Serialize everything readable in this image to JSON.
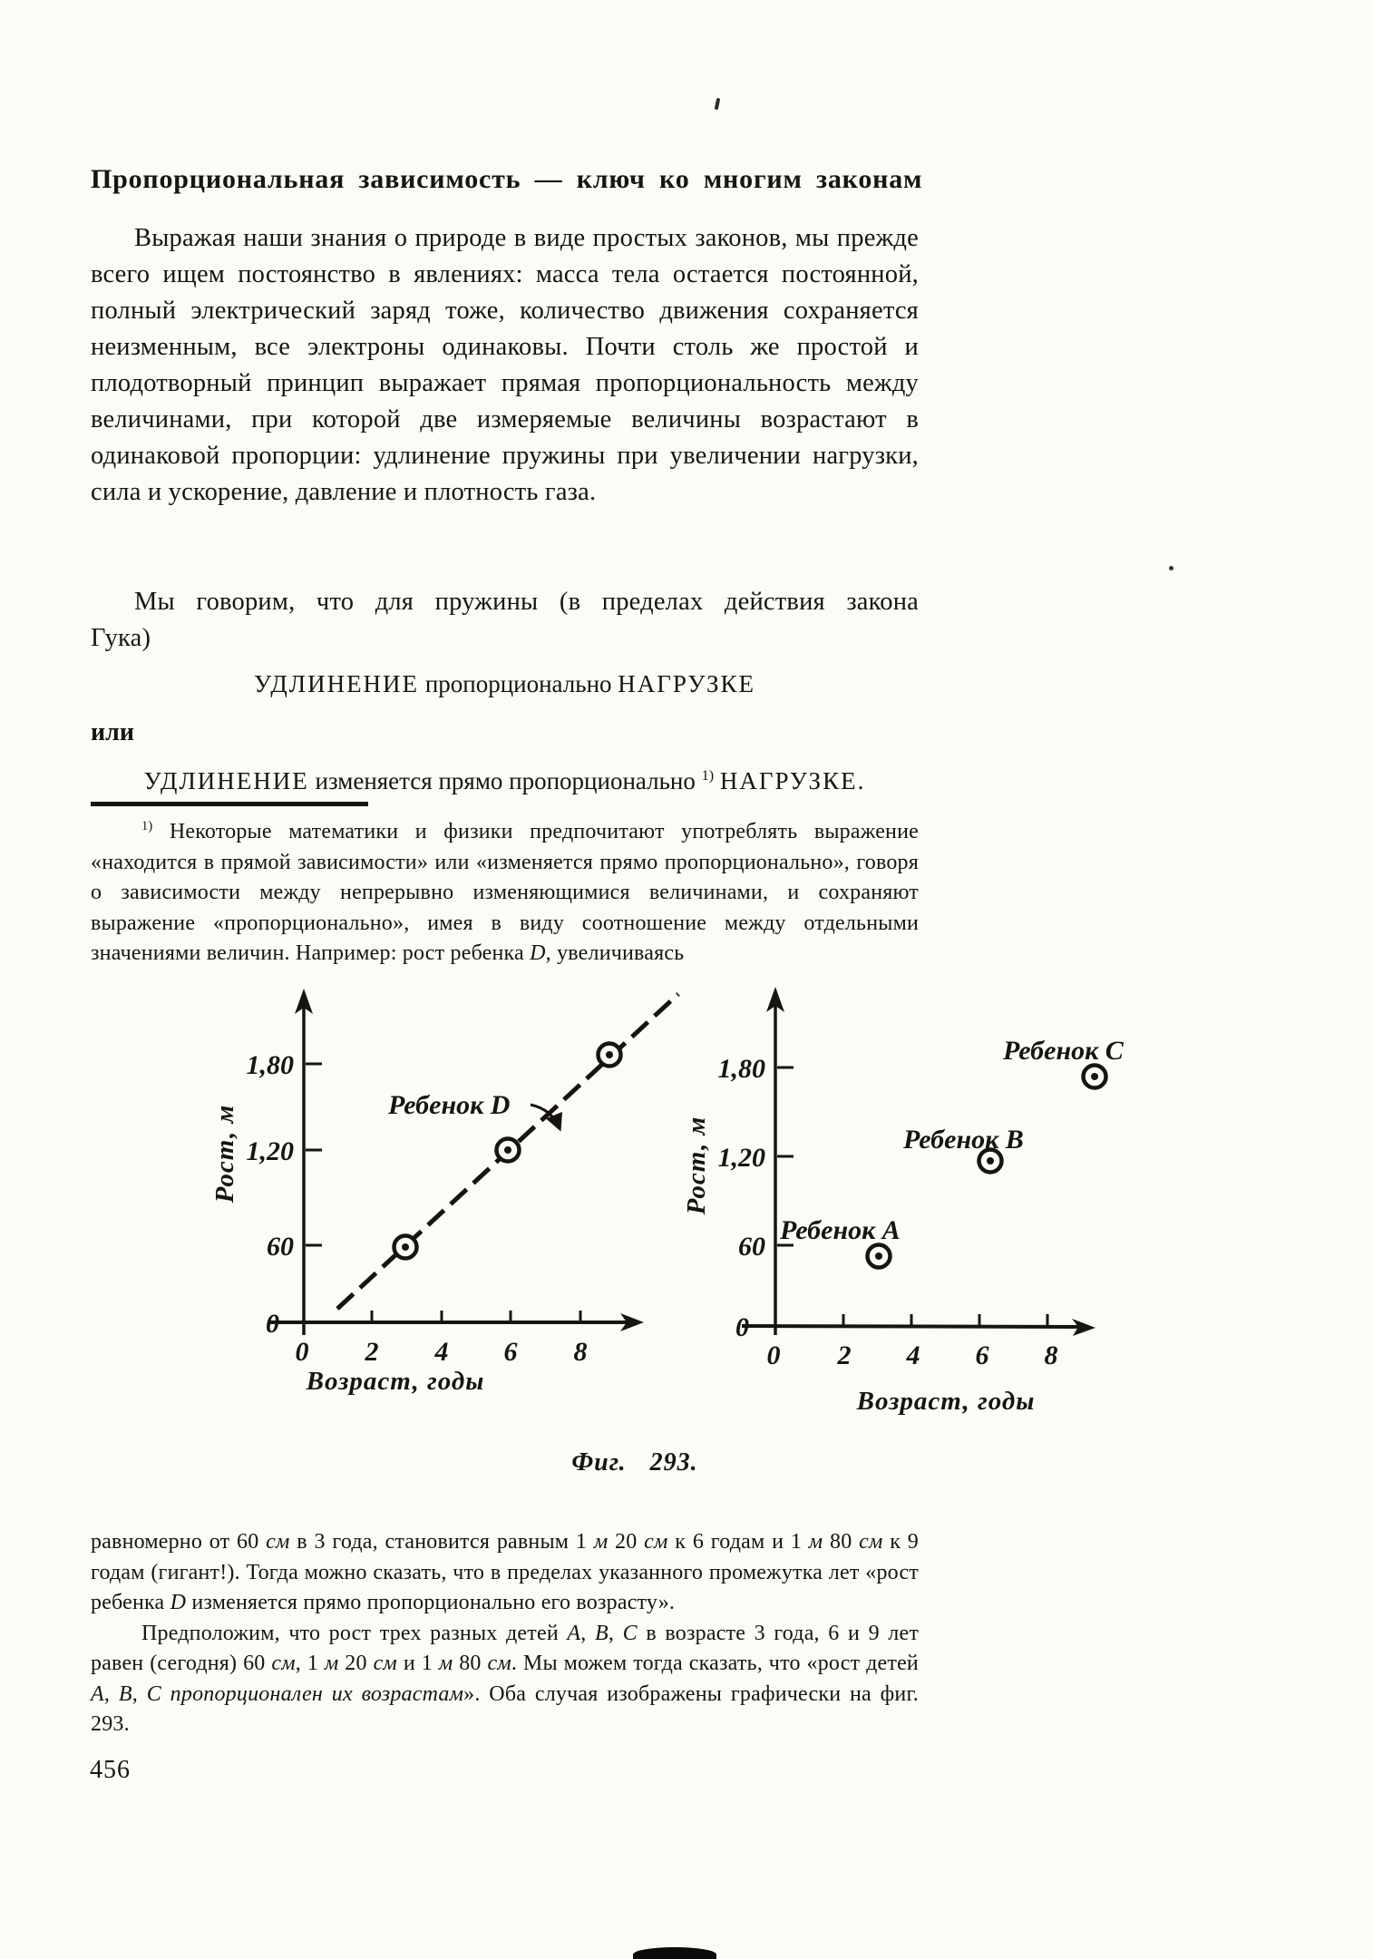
{
  "title": "Пропорциональная зависимость — ключ ко многим законам",
  "page_number": "456",
  "figure_caption": "Фиг. 293.",
  "content": {
    "intro": [
      {
        "t": "Выражая наши знания о природе в виде простых законов, мы прежде всего ищем постоянство в явлениях: масса тела остается постоянной, полный электрический заряд тоже, количество движения сохраняется неизменным, все электроны одинаковы. Почти столь же простой и плодотворный принцип выражает прямая пропорциональность между величинами, при которой две измеряемые величины возрастают в одинаковой пропорции: удлинение пружины при увеличении нагрузки, сила и ускорение, давление и плотность газа."
      }
    ],
    "spring": [
      {
        "t": "Мы говорим, что для пружины (в пределах действия закона",
        "c": "jline"
      },
      {
        "t": "Гука)",
        "c": "blk"
      }
    ],
    "statement1": [
      {
        "t": "УДЛИНЕНИЕ",
        "c": "caps"
      },
      {
        "t": " пропорционально "
      },
      {
        "t": "НАГРУЗКЕ",
        "c": "caps"
      }
    ],
    "or_word": "или",
    "statement2": [
      {
        "t": "УДЛИНЕНИЕ",
        "c": "caps"
      },
      {
        "t": " изменяется прямо пропорционально "
      },
      {
        "t": "1)",
        "c": "sup"
      },
      {
        "t": " "
      },
      {
        "t": "НАГРУЗКЕ.",
        "c": "caps"
      }
    ],
    "footnote_top": [
      {
        "t": "1)",
        "c": "sup"
      },
      {
        "t": " Некоторые математики и физики предпочитают употреблять выражение «находится в прямой зависимости» или «изменяется прямо пропорционально», говоря о зависимости между непрерывно изменяющимися величинами, и сохраняют выражение «пропорционально», имея в виду соотношение между отдельными значениями величин. Например: рост ребенка "
      },
      {
        "t": "D",
        "c": "i"
      },
      {
        "t": ", увеличиваясь"
      }
    ],
    "footnote_cont1": [
      {
        "t": "равномерно от 60 "
      },
      {
        "t": "см",
        "c": "i"
      },
      {
        "t": " в 3 года, становится равным 1 "
      },
      {
        "t": "м",
        "c": "i"
      },
      {
        "t": " 20 "
      },
      {
        "t": "см",
        "c": "i"
      },
      {
        "t": " к 6 годам и 1 "
      },
      {
        "t": "м",
        "c": "i"
      },
      {
        "t": " 80 "
      },
      {
        "t": "см",
        "c": "i"
      },
      {
        "t": " к 9 годам (гигант!). Тогда можно сказать, что в пределах указанного промежутка лет «рост ребенка "
      },
      {
        "t": "D",
        "c": "i"
      },
      {
        "t": " изменяется прямо пропорционально его возрасту»."
      }
    ],
    "footnote_cont2": [
      {
        "t": "Предположим, что рост трех разных детей "
      },
      {
        "t": "A",
        "c": "i"
      },
      {
        "t": ", "
      },
      {
        "t": "B",
        "c": "i"
      },
      {
        "t": ", "
      },
      {
        "t": "C",
        "c": "i"
      },
      {
        "t": " в возрасте 3 года, 6 и 9 лет равен (сегодня) 60 "
      },
      {
        "t": "см",
        "c": "i"
      },
      {
        "t": ", 1 "
      },
      {
        "t": "м",
        "c": "i"
      },
      {
        "t": " 20 "
      },
      {
        "t": "см",
        "c": "i"
      },
      {
        "t": " и 1 "
      },
      {
        "t": "м",
        "c": "i"
      },
      {
        "t": " 80 "
      },
      {
        "t": "см",
        "c": "i"
      },
      {
        "t": ". Мы можем тогда сказать, что «рост детей "
      },
      {
        "t": "A",
        "c": "i"
      },
      {
        "t": ", "
      },
      {
        "t": "B",
        "c": "i"
      },
      {
        "t": ", "
      },
      {
        "t": "C",
        "c": "i"
      },
      {
        "t": " "
      },
      {
        "t": "пропорционален их возрастам",
        "c": "i"
      },
      {
        "t": "». Оба случая изображены графически на фиг. 293."
      }
    ]
  },
  "chart_data": [
    {
      "type": "scatter",
      "xlabel": "Возраст, годы",
      "ylabel": "Рост, м",
      "xlim": [
        0,
        9.6
      ],
      "ylim": [
        0,
        2.05
      ],
      "xticks": [
        0,
        2,
        4,
        6,
        8
      ],
      "xtick_labels": [
        "0",
        "2",
        "4",
        "6",
        "8"
      ],
      "yticks": [
        0,
        0.6,
        1.2,
        1.8
      ],
      "ytick_labels": [
        "0",
        "60",
        "1,20",
        "1,80"
      ],
      "grid": false,
      "annotation": "Ребенок D",
      "series": [
        {
          "name": "Ребенок D",
          "x": [
            3,
            6,
            9
          ],
          "y": [
            0.6,
            1.2,
            1.8
          ],
          "marker": "circled-dot",
          "line": "dashed"
        }
      ]
    },
    {
      "type": "scatter",
      "xlabel": "Возраст, годы",
      "ylabel": "Рост, м",
      "xlim": [
        0,
        9.6
      ],
      "ylim": [
        0,
        2.05
      ],
      "xticks": [
        0,
        2,
        4,
        6,
        8
      ],
      "xtick_labels": [
        "0",
        "2",
        "4",
        "6",
        "8"
      ],
      "yticks": [
        0,
        0.6,
        1.2,
        1.8
      ],
      "ytick_labels": [
        "0",
        "60",
        "1,20",
        "1,80"
      ],
      "grid": false,
      "series": [
        {
          "name": "Ребенок A",
          "x": [
            3
          ],
          "y": [
            0.6
          ],
          "marker": "circled-dot",
          "line": "none"
        },
        {
          "name": "Ребенок B",
          "x": [
            6
          ],
          "y": [
            1.2
          ],
          "marker": "circled-dot",
          "line": "none"
        },
        {
          "name": "Ребенок C",
          "x": [
            9
          ],
          "y": [
            1.8
          ],
          "marker": "circled-dot",
          "line": "none"
        }
      ]
    }
  ]
}
